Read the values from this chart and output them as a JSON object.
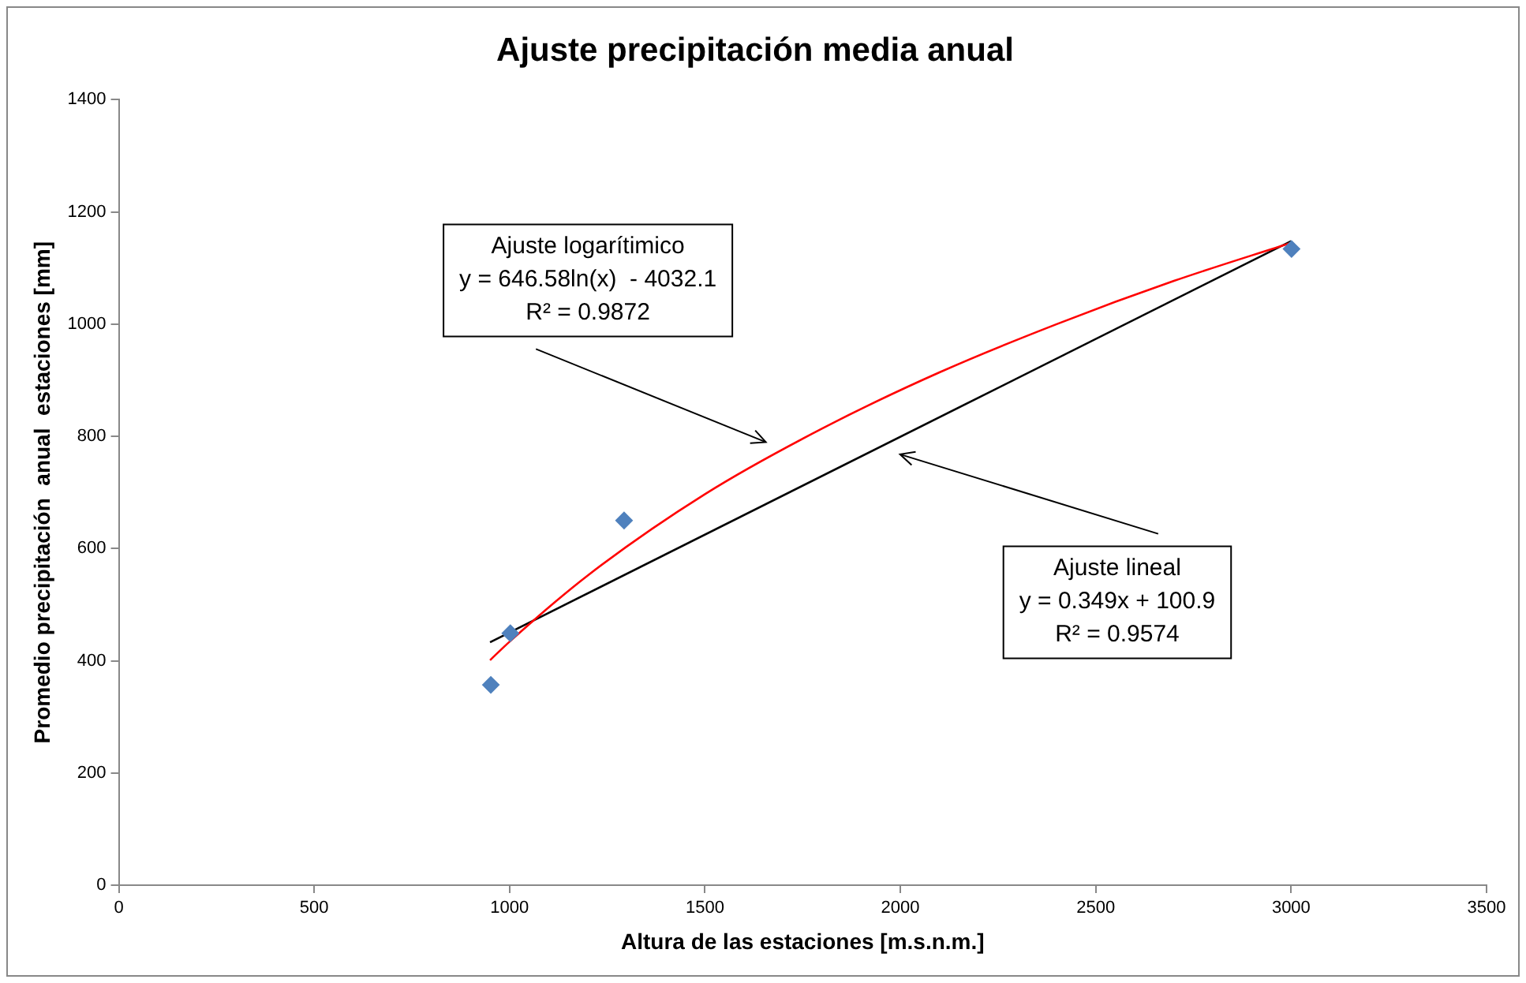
{
  "chart_data": {
    "type": "scatter",
    "title": "Ajuste precipitación media anual",
    "xlabel": "Altura de las estaciones [m.s.n.m.]",
    "ylabel": "Promedio precipitación  anual  estaciones [mm]",
    "xlim": [
      0,
      3500
    ],
    "xticks": [
      0,
      500,
      1000,
      1500,
      2000,
      2500,
      3000,
      3500
    ],
    "ylim": [
      0,
      1400
    ],
    "yticks": [
      0,
      200,
      400,
      600,
      800,
      1000,
      1200,
      1400
    ],
    "grid": false,
    "legend": false,
    "series": [
      {
        "color": "#4f81bd",
        "marker": "diamond",
        "x": [
          952,
          1002,
          1293,
          3001
        ],
        "values": [
          357,
          449,
          650,
          1134
        ]
      },
      {
        "type": "line",
        "color": "#ff0000",
        "marker": "none",
        "x": [
          950,
          1000,
          1200,
          1500,
          1800,
          2100,
          2400,
          2700,
          3000
        ],
        "values": [
          401,
          434,
          552,
          697,
          814,
          914,
          1000,
          1077,
          1145
        ]
      },
      {
        "type": "line",
        "color": "#000000",
        "marker": "none",
        "x": [
          950,
          3000
        ],
        "values": [
          433,
          1148
        ]
      }
    ],
    "annotations": [
      "Ajuste logarítimico\ny = 646.58ln(x)  - 4032.1\nR² = 0.9872",
      "Ajuste lineal\ny = 0.349x + 100.9\nR² = 0.9574"
    ]
  }
}
